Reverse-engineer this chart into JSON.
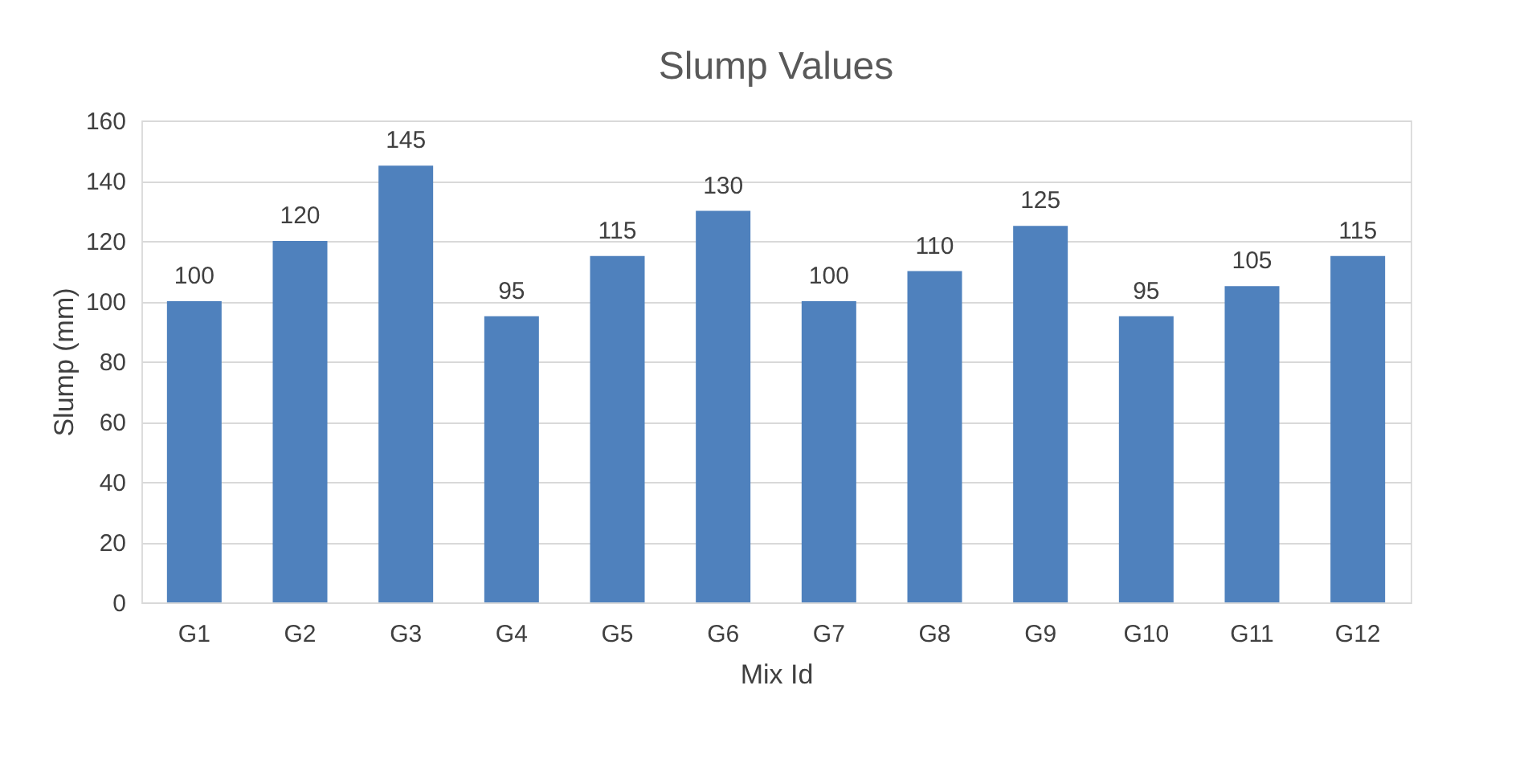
{
  "chart_data": {
    "type": "bar",
    "title": "Slump Values",
    "xlabel": "Mix Id",
    "ylabel": "Slump (mm)",
    "categories": [
      "G1",
      "G2",
      "G3",
      "G4",
      "G5",
      "G6",
      "G7",
      "G8",
      "G9",
      "G10",
      "G11",
      "G12"
    ],
    "values": [
      100,
      120,
      145,
      95,
      115,
      130,
      100,
      110,
      125,
      95,
      105,
      115
    ],
    "color": "#4f81bd",
    "ylim": [
      0,
      160
    ],
    "yticks": [
      0,
      20,
      40,
      60,
      80,
      100,
      120,
      140,
      160
    ],
    "grid": "y",
    "data_labels": true
  }
}
